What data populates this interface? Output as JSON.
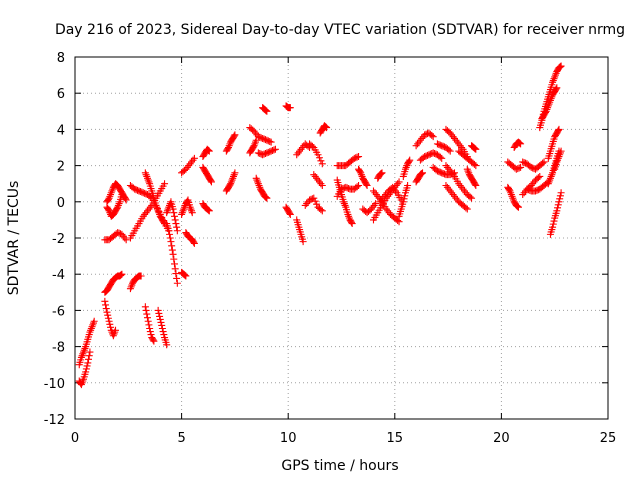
{
  "chart_data": {
    "type": "scatter",
    "title": "Day 216 of 2023, Sidereal Day-to-day VTEC variation (SDTVAR) for receiver nrmg",
    "xlabel": "GPS time / hours",
    "ylabel": "SDTVAR / TECUs",
    "xlim": [
      0,
      25
    ],
    "ylim": [
      -12,
      8
    ],
    "xticks": [
      0,
      5,
      10,
      15,
      20,
      25
    ],
    "yticks": [
      -12,
      -10,
      -8,
      -6,
      -4,
      -2,
      0,
      2,
      4,
      6,
      8
    ],
    "grid": true,
    "marker": "+",
    "color": "#ff0000",
    "series": [
      {
        "name": "t0",
        "x": [
          0.2,
          0.3,
          0.4,
          0.5,
          0.6,
          0.7,
          0.8,
          0.9
        ],
        "y": [
          -9.0,
          -8.6,
          -8.3,
          -8.0,
          -7.6,
          -7.2,
          -6.9,
          -6.6
        ]
      },
      {
        "name": "t1",
        "x": [
          0.2,
          0.3,
          0.4,
          0.5,
          0.6,
          0.7
        ],
        "y": [
          -9.9,
          -10.1,
          -9.8,
          -9.4,
          -8.9,
          -8.3
        ]
      },
      {
        "name": "t2",
        "x": [
          1.4,
          1.5,
          1.6,
          1.7,
          1.8,
          1.9,
          2.0,
          2.1,
          2.2
        ],
        "y": [
          -5.0,
          -4.9,
          -4.7,
          -4.5,
          -4.3,
          -4.2,
          -4.1,
          -4.1,
          -4.0
        ]
      },
      {
        "name": "t3",
        "x": [
          1.4,
          1.5,
          1.6,
          1.7,
          1.8,
          1.9
        ],
        "y": [
          -5.5,
          -6.1,
          -6.6,
          -7.1,
          -7.4,
          -7.1
        ]
      },
      {
        "name": "t4",
        "x": [
          1.4,
          1.6,
          1.8,
          2.0,
          2.2,
          2.4
        ],
        "y": [
          -2.1,
          -2.1,
          -1.9,
          -1.7,
          -1.8,
          -2.1
        ]
      },
      {
        "name": "t5",
        "x": [
          1.5,
          1.6,
          1.7,
          1.8,
          1.9,
          2.0,
          2.1,
          2.2,
          2.3,
          2.4
        ],
        "y": [
          0.0,
          0.2,
          0.5,
          0.8,
          1.0,
          0.9,
          0.7,
          0.5,
          0.3,
          0.1
        ]
      },
      {
        "name": "t6",
        "x": [
          1.5,
          1.6,
          1.7,
          1.8,
          1.9,
          2.0,
          2.1,
          2.2
        ],
        "y": [
          -0.3,
          -0.5,
          -0.8,
          -0.7,
          -0.5,
          -0.3,
          0.0,
          0.4
        ]
      },
      {
        "name": "t7",
        "x": [
          2.6,
          2.7,
          2.8,
          2.9,
          3.0,
          3.1
        ],
        "y": [
          -4.8,
          -4.5,
          -4.3,
          -4.2,
          -4.1,
          -4.1
        ]
      },
      {
        "name": "t8",
        "x": [
          2.6,
          2.8,
          3.0,
          3.2,
          3.4,
          3.6,
          3.8,
          4.0,
          4.2
        ],
        "y": [
          -2.0,
          -1.6,
          -1.2,
          -0.8,
          -0.5,
          -0.2,
          0.2,
          0.6,
          1.0
        ]
      },
      {
        "name": "t9",
        "x": [
          2.6,
          2.8,
          3.0,
          3.2,
          3.4,
          3.6,
          3.8,
          4.0,
          4.2,
          4.4
        ],
        "y": [
          0.9,
          0.7,
          0.6,
          0.5,
          0.4,
          0.2,
          -0.2,
          -0.7,
          -1.2,
          -1.6
        ]
      },
      {
        "name": "t10",
        "x": [
          3.3,
          3.4,
          3.5,
          3.6,
          3.7,
          3.8,
          3.9,
          4.0,
          4.1,
          4.2
        ],
        "y": [
          1.6,
          1.3,
          1.0,
          0.6,
          0.2,
          -0.2,
          -0.5,
          -0.8,
          -1.0,
          -1.2
        ]
      },
      {
        "name": "t11",
        "x": [
          3.3,
          3.4,
          3.5,
          3.6,
          3.7
        ],
        "y": [
          -5.8,
          -6.4,
          -7.0,
          -7.5,
          -7.7
        ]
      },
      {
        "name": "t12",
        "x": [
          3.9,
          4.0,
          4.1,
          4.2,
          4.3
        ],
        "y": [
          -6.0,
          -6.5,
          -7.0,
          -7.5,
          -7.9
        ]
      },
      {
        "name": "t13",
        "x": [
          4.3,
          4.4,
          4.5,
          4.6,
          4.7,
          4.8
        ],
        "y": [
          -1.2,
          -1.6,
          -2.2,
          -2.9,
          -3.7,
          -4.5
        ]
      },
      {
        "name": "t14",
        "x": [
          4.3,
          4.4,
          4.5,
          4.6,
          4.7,
          4.8
        ],
        "y": [
          -0.6,
          -0.3,
          0.0,
          -0.4,
          -1.0,
          -1.6
        ]
      },
      {
        "name": "t15",
        "x": [
          5.0,
          5.1,
          5.2,
          5.3,
          5.4,
          5.5
        ],
        "y": [
          -0.7,
          -0.4,
          -0.1,
          0.1,
          -0.3,
          -0.6
        ]
      },
      {
        "name": "t16",
        "x": [
          5.2,
          5.3,
          5.4,
          5.5,
          5.6
        ],
        "y": [
          -1.7,
          -1.9,
          -2.0,
          -2.1,
          -2.3
        ]
      },
      {
        "name": "t17",
        "x": [
          5.0,
          5.1,
          5.2
        ],
        "y": [
          -3.9,
          -4.0,
          -4.1
        ]
      },
      {
        "name": "t18",
        "x": [
          5.0,
          5.2,
          5.4,
          5.6
        ],
        "y": [
          1.6,
          1.8,
          2.1,
          2.4
        ]
      },
      {
        "name": "t19",
        "x": [
          6.0,
          6.1,
          6.2,
          6.3
        ],
        "y": [
          2.5,
          2.7,
          2.9,
          2.8
        ]
      },
      {
        "name": "t20",
        "x": [
          6.0,
          6.1,
          6.2,
          6.3,
          6.4
        ],
        "y": [
          1.9,
          1.7,
          1.5,
          1.3,
          1.1
        ]
      },
      {
        "name": "t21",
        "x": [
          6.0,
          6.1,
          6.2,
          6.3
        ],
        "y": [
          -0.1,
          -0.3,
          -0.4,
          -0.5
        ]
      },
      {
        "name": "t22",
        "x": [
          7.1,
          7.2,
          7.3,
          7.4,
          7.5
        ],
        "y": [
          0.6,
          0.8,
          1.0,
          1.3,
          1.6
        ]
      },
      {
        "name": "t23",
        "x": [
          7.1,
          7.2,
          7.3,
          7.4,
          7.5
        ],
        "y": [
          2.8,
          3.0,
          3.3,
          3.5,
          3.7
        ]
      },
      {
        "name": "t24",
        "x": [
          8.2,
          8.4,
          8.6,
          8.8,
          9.0,
          9.2
        ],
        "y": [
          4.1,
          3.9,
          3.6,
          3.5,
          3.4,
          3.3
        ]
      },
      {
        "name": "t25",
        "x": [
          8.2,
          8.3,
          8.4,
          8.5
        ],
        "y": [
          2.7,
          2.9,
          3.1,
          3.4
        ]
      },
      {
        "name": "t26",
        "x": [
          8.6,
          8.8,
          9.0,
          9.2,
          9.4
        ],
        "y": [
          2.7,
          2.6,
          2.7,
          2.8,
          2.9
        ]
      },
      {
        "name": "t27",
        "x": [
          8.8,
          8.9,
          9.0
        ],
        "y": [
          5.2,
          5.1,
          5.0
        ]
      },
      {
        "name": "t28",
        "x": [
          9.9,
          10.0,
          10.1
        ],
        "y": [
          5.3,
          5.2,
          5.2
        ]
      },
      {
        "name": "t29",
        "x": [
          9.9,
          10.0,
          10.1
        ],
        "y": [
          -0.3,
          -0.5,
          -0.7
        ]
      },
      {
        "name": "t30",
        "x": [
          8.5,
          8.6,
          8.7,
          8.8,
          8.9,
          9.0
        ],
        "y": [
          1.3,
          1.0,
          0.7,
          0.5,
          0.3,
          0.2
        ]
      },
      {
        "name": "t31",
        "x": [
          10.4,
          10.5,
          10.6,
          10.7
        ],
        "y": [
          -1.0,
          -1.4,
          -1.8,
          -2.2
        ]
      },
      {
        "name": "t32",
        "x": [
          10.4,
          10.6,
          10.8,
          11.0
        ],
        "y": [
          2.6,
          2.9,
          3.2,
          3.0
        ]
      },
      {
        "name": "t33",
        "x": [
          11.0,
          11.2,
          11.4,
          11.6
        ],
        "y": [
          3.2,
          3.0,
          2.6,
          2.1
        ]
      },
      {
        "name": "t34",
        "x": [
          11.2,
          11.4,
          11.6
        ],
        "y": [
          1.5,
          1.2,
          0.9
        ]
      },
      {
        "name": "t35",
        "x": [
          11.5,
          11.6,
          11.7,
          11.8
        ],
        "y": [
          3.8,
          4.0,
          4.2,
          4.1
        ]
      },
      {
        "name": "t36",
        "x": [
          10.8,
          11.0,
          11.2,
          11.4,
          11.6
        ],
        "y": [
          -0.2,
          0.1,
          0.2,
          -0.3,
          -0.5
        ]
      },
      {
        "name": "t37",
        "x": [
          12.3,
          12.4,
          12.5,
          12.6,
          12.7,
          12.8,
          12.9,
          13.0
        ],
        "y": [
          1.2,
          0.8,
          0.4,
          0.0,
          -0.3,
          -0.7,
          -1.0,
          -1.2
        ]
      },
      {
        "name": "t38",
        "x": [
          12.3,
          12.5,
          12.7,
          12.9,
          13.1,
          13.3
        ],
        "y": [
          0.3,
          0.7,
          0.8,
          0.7,
          0.7,
          0.9
        ]
      },
      {
        "name": "t39",
        "x": [
          12.3,
          12.5,
          12.7,
          12.9,
          13.1,
          13.3
        ],
        "y": [
          2.0,
          2.0,
          2.0,
          2.2,
          2.4,
          2.5
        ]
      },
      {
        "name": "t40",
        "x": [
          13.3,
          13.4,
          13.5,
          13.6,
          13.7
        ],
        "y": [
          1.8,
          1.6,
          1.3,
          1.1,
          0.9
        ]
      },
      {
        "name": "t41",
        "x": [
          13.5,
          13.7,
          13.9,
          14.1
        ],
        "y": [
          -0.4,
          -0.6,
          -0.4,
          -0.1
        ]
      },
      {
        "name": "t42",
        "x": [
          14.0,
          14.2,
          14.4,
          14.6,
          14.8,
          15.0,
          15.2
        ],
        "y": [
          -1.0,
          -0.6,
          -0.2,
          0.2,
          0.5,
          0.8,
          1.1
        ]
      },
      {
        "name": "t43",
        "x": [
          14.0,
          14.2,
          14.4,
          14.6,
          14.8,
          15.0,
          15.2
        ],
        "y": [
          0.6,
          0.3,
          0.0,
          -0.4,
          -0.7,
          -0.9,
          -1.1
        ]
      },
      {
        "name": "t44",
        "x": [
          14.3,
          14.5,
          14.7,
          14.9,
          15.1,
          15.3
        ],
        "y": [
          0.0,
          0.3,
          0.6,
          0.8,
          0.5,
          0.1
        ]
      },
      {
        "name": "t45",
        "x": [
          14.2,
          14.3,
          14.4
        ],
        "y": [
          1.3,
          1.5,
          1.6
        ]
      },
      {
        "name": "t46",
        "x": [
          15.2,
          15.3,
          15.4,
          15.5,
          15.6
        ],
        "y": [
          -0.8,
          -0.4,
          0.0,
          0.5,
          0.9
        ]
      },
      {
        "name": "t47",
        "x": [
          15.4,
          15.5,
          15.6,
          15.7
        ],
        "y": [
          1.4,
          1.8,
          2.1,
          2.3
        ]
      },
      {
        "name": "t48",
        "x": [
          16.0,
          16.1,
          16.2,
          16.3
        ],
        "y": [
          1.1,
          1.3,
          1.5,
          1.6
        ]
      },
      {
        "name": "t49",
        "x": [
          16.0,
          16.2,
          16.4,
          16.6,
          16.8
        ],
        "y": [
          3.1,
          3.4,
          3.7,
          3.8,
          3.6
        ]
      },
      {
        "name": "t50",
        "x": [
          16.2,
          16.4,
          16.6,
          16.8,
          17.0,
          17.2
        ],
        "y": [
          2.3,
          2.5,
          2.6,
          2.7,
          2.6,
          2.4
        ]
      },
      {
        "name": "t51",
        "x": [
          17.0,
          17.2,
          17.4,
          17.6
        ],
        "y": [
          3.2,
          3.1,
          3.0,
          2.8
        ]
      },
      {
        "name": "t52",
        "x": [
          16.8,
          17.0,
          17.2,
          17.4,
          17.6,
          17.8
        ],
        "y": [
          1.9,
          1.7,
          1.6,
          1.5,
          1.5,
          1.6
        ]
      },
      {
        "name": "t53",
        "x": [
          17.4,
          17.6,
          17.8,
          18.0,
          18.2,
          18.4
        ],
        "y": [
          4.0,
          3.8,
          3.5,
          3.2,
          2.9,
          2.5
        ]
      },
      {
        "name": "t54",
        "x": [
          17.4,
          17.6,
          17.8,
          18.0,
          18.2,
          18.4,
          18.6
        ],
        "y": [
          2.0,
          1.7,
          1.4,
          1.0,
          0.7,
          0.4,
          0.2
        ]
      },
      {
        "name": "t55",
        "x": [
          17.4,
          17.6,
          17.8,
          18.0,
          18.2,
          18.4
        ],
        "y": [
          0.9,
          0.6,
          0.3,
          0.0,
          -0.2,
          -0.4
        ]
      },
      {
        "name": "t56",
        "x": [
          18.0,
          18.2,
          18.4,
          18.6,
          18.8
        ],
        "y": [
          2.8,
          2.6,
          2.4,
          2.2,
          2.0
        ]
      },
      {
        "name": "t57",
        "x": [
          18.4,
          18.5,
          18.6,
          18.7,
          18.8
        ],
        "y": [
          1.8,
          1.5,
          1.3,
          1.1,
          0.9
        ]
      },
      {
        "name": "t58",
        "x": [
          18.6,
          18.7,
          18.8
        ],
        "y": [
          3.1,
          3.0,
          2.9
        ]
      },
      {
        "name": "t59",
        "x": [
          20.3,
          20.5,
          20.7,
          20.9
        ],
        "y": [
          2.2,
          2.0,
          1.8,
          1.9
        ]
      },
      {
        "name": "t60",
        "x": [
          20.3,
          20.4,
          20.5,
          20.6,
          20.7,
          20.8
        ],
        "y": [
          0.8,
          0.6,
          0.3,
          0.0,
          -0.2,
          -0.3
        ]
      },
      {
        "name": "t61",
        "x": [
          20.6,
          20.7,
          20.8,
          20.9
        ],
        "y": [
          3.0,
          3.2,
          3.3,
          3.2
        ]
      },
      {
        "name": "t62",
        "x": [
          21.0,
          21.2,
          21.4,
          21.6,
          21.8
        ],
        "y": [
          0.4,
          0.7,
          0.9,
          1.2,
          1.4
        ]
      },
      {
        "name": "t63",
        "x": [
          21.0,
          21.2,
          21.4,
          21.6,
          21.8,
          22.0
        ],
        "y": [
          2.2,
          2.1,
          1.9,
          1.8,
          2.0,
          2.2
        ]
      },
      {
        "name": "t64",
        "x": [
          21.2,
          21.4,
          21.6,
          21.8,
          22.0,
          22.2
        ],
        "y": [
          0.7,
          0.6,
          0.6,
          0.7,
          0.9,
          1.1
        ]
      },
      {
        "name": "t65",
        "x": [
          21.8,
          21.9,
          22.0,
          22.1,
          22.2,
          22.3,
          22.4,
          22.5,
          22.6,
          22.7,
          22.8
        ],
        "y": [
          4.1,
          4.5,
          5.0,
          5.4,
          5.8,
          6.2,
          6.6,
          6.9,
          7.2,
          7.4,
          7.5
        ]
      },
      {
        "name": "t66",
        "x": [
          21.9,
          22.0,
          22.1,
          22.2,
          22.3,
          22.4,
          22.5,
          22.6
        ],
        "y": [
          4.6,
          4.8,
          5.0,
          5.3,
          5.6,
          5.9,
          6.1,
          6.3
        ]
      },
      {
        "name": "t67",
        "x": [
          22.2,
          22.3,
          22.4,
          22.5,
          22.6,
          22.7
        ],
        "y": [
          2.4,
          2.8,
          3.2,
          3.6,
          3.8,
          4.0
        ]
      },
      {
        "name": "t68",
        "x": [
          22.3,
          22.4,
          22.5,
          22.6,
          22.7,
          22.8
        ],
        "y": [
          -1.8,
          -1.4,
          -0.9,
          -0.5,
          0.0,
          0.5
        ]
      },
      {
        "name": "t69",
        "x": [
          22.2,
          22.3,
          22.4,
          22.5,
          22.6,
          22.7
        ],
        "y": [
          1.0,
          1.3,
          1.6,
          2.0,
          2.4,
          2.8
        ]
      },
      {
        "name": "t70",
        "x": [
          22.5,
          22.6,
          22.7,
          22.8
        ],
        "y": [
          1.8,
          2.2,
          2.5,
          2.8
        ]
      }
    ]
  }
}
